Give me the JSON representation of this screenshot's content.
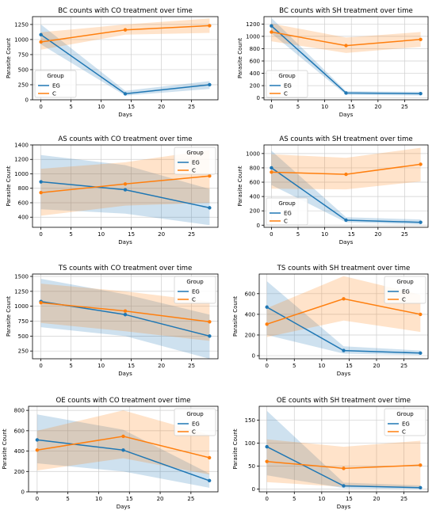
{
  "legend_title": "Group",
  "xlabel": "Days",
  "ylabel": "Parasite Count",
  "colors": {
    "EG": "#1f77b4",
    "C": "#ff7f0e"
  },
  "chart_data": [
    {
      "type": "line",
      "title": "BC counts with CO treatment over time",
      "xlabel": "Days",
      "ylabel": "Parasite Count",
      "xlim": [
        -1.4,
        29.4
      ],
      "ylim": [
        0,
        1380
      ],
      "xticks": [
        0,
        5,
        10,
        15,
        20,
        25
      ],
      "yticks": [
        0,
        250,
        500,
        750,
        1000,
        1250
      ],
      "legend": "bottom-left",
      "grid": true,
      "x": [
        0,
        14,
        28
      ],
      "series": [
        {
          "name": "EG",
          "values": [
            1080,
            100,
            250
          ],
          "lower": [
            920,
            70,
            180
          ],
          "upper": [
            1250,
            150,
            310
          ]
        },
        {
          "name": "C",
          "values": [
            960,
            1160,
            1230
          ],
          "lower": [
            830,
            1080,
            1110
          ],
          "upper": [
            1120,
            1250,
            1350
          ]
        }
      ]
    },
    {
      "type": "line",
      "title": "BC counts with SH treatment over time",
      "xlabel": "Days",
      "ylabel": "Parasite Count",
      "xlim": [
        -1.4,
        29.4
      ],
      "ylim": [
        -30,
        1320
      ],
      "xticks": [
        0,
        5,
        10,
        15,
        20,
        25
      ],
      "yticks": [
        0,
        200,
        400,
        600,
        800,
        1000,
        1200
      ],
      "legend": "bottom-left",
      "grid": true,
      "x": [
        0,
        14,
        28
      ],
      "series": [
        {
          "name": "EG",
          "values": [
            1170,
            80,
            70
          ],
          "lower": [
            1050,
            50,
            40
          ],
          "upper": [
            1300,
            110,
            100
          ]
        },
        {
          "name": "C",
          "values": [
            1070,
            850,
            950
          ],
          "lower": [
            920,
            730,
            830
          ],
          "upper": [
            1210,
            980,
            1070
          ]
        }
      ]
    },
    {
      "type": "line",
      "title": "AS counts with CO treatment over time",
      "xlabel": "Days",
      "ylabel": "Parasite Count",
      "xlim": [
        -1.4,
        29.4
      ],
      "ylim": [
        260,
        1400
      ],
      "xticks": [
        0,
        5,
        10,
        15,
        20,
        25
      ],
      "yticks": [
        400,
        600,
        800,
        1000,
        1200,
        1400
      ],
      "legend": "top-right",
      "grid": true,
      "x": [
        0,
        14,
        28
      ],
      "series": [
        {
          "name": "EG",
          "values": [
            890,
            780,
            530
          ],
          "lower": [
            510,
            450,
            290
          ],
          "upper": [
            1260,
            1120,
            790
          ]
        },
        {
          "name": "C",
          "values": [
            740,
            860,
            970
          ],
          "lower": [
            420,
            560,
            600
          ],
          "upper": [
            1070,
            1160,
            1330
          ]
        }
      ]
    },
    {
      "type": "line",
      "title": "AS counts with SH treatment over time",
      "xlabel": "Days",
      "ylabel": "Parasite Count",
      "xlim": [
        -1.4,
        29.4
      ],
      "ylim": [
        -30,
        1120
      ],
      "xticks": [
        0,
        5,
        10,
        15,
        20,
        25
      ],
      "yticks": [
        0,
        200,
        400,
        600,
        800,
        1000
      ],
      "legend": "bottom-left",
      "grid": true,
      "x": [
        0,
        14,
        28
      ],
      "series": [
        {
          "name": "EG",
          "values": [
            800,
            70,
            40
          ],
          "lower": [
            560,
            40,
            10
          ],
          "upper": [
            1040,
            110,
            80
          ]
        },
        {
          "name": "C",
          "values": [
            740,
            710,
            850
          ],
          "lower": [
            510,
            500,
            610
          ],
          "upper": [
            990,
            940,
            1080
          ]
        }
      ]
    },
    {
      "type": "line",
      "title": "TS counts with CO treatment over time",
      "xlabel": "Days",
      "ylabel": "Parasite Count",
      "xlim": [
        -1.4,
        29.4
      ],
      "ylim": [
        120,
        1540
      ],
      "xticks": [
        0,
        5,
        10,
        15,
        20,
        25
      ],
      "yticks": [
        250,
        500,
        750,
        1000,
        1250,
        1500
      ],
      "legend": "top-right",
      "grid": true,
      "x": [
        0,
        14,
        28
      ],
      "series": [
        {
          "name": "EG",
          "values": [
            1080,
            860,
            500
          ],
          "lower": [
            650,
            500,
            120
          ],
          "upper": [
            1460,
            1200,
            860
          ]
        },
        {
          "name": "C",
          "values": [
            1060,
            920,
            740
          ],
          "lower": [
            720,
            580,
            420
          ],
          "upper": [
            1380,
            1250,
            1080
          ]
        }
      ]
    },
    {
      "type": "line",
      "title": "TS counts with SH treatment over time",
      "xlabel": "Days",
      "ylabel": "Parasite Count",
      "xlim": [
        -1.4,
        29.4
      ],
      "ylim": [
        -30,
        790
      ],
      "xticks": [
        0,
        5,
        10,
        15,
        20,
        25
      ],
      "yticks": [
        0,
        200,
        400,
        600
      ],
      "legend": "top-right",
      "grid": true,
      "x": [
        0,
        14,
        28
      ],
      "series": [
        {
          "name": "EG",
          "values": [
            470,
            50,
            25
          ],
          "lower": [
            200,
            20,
            5
          ],
          "upper": [
            720,
            90,
            50
          ]
        },
        {
          "name": "C",
          "values": [
            305,
            550,
            400
          ],
          "lower": [
            180,
            340,
            230
          ],
          "upper": [
            460,
            770,
            590
          ]
        }
      ]
    },
    {
      "type": "line",
      "title": "OE counts with CO treatment over time",
      "xlabel": "Days",
      "ylabel": "Parasite Count",
      "xlim": [
        -1.4,
        29.4
      ],
      "ylim": [
        0,
        840
      ],
      "xticks": [
        0,
        5,
        10,
        15,
        20,
        25
      ],
      "yticks": [
        0,
        200,
        400,
        600,
        800
      ],
      "legend": "top-right",
      "grid": true,
      "x": [
        0,
        14,
        28
      ],
      "series": [
        {
          "name": "EG",
          "values": [
            510,
            410,
            110
          ],
          "lower": [
            280,
            200,
            40
          ],
          "upper": [
            760,
            610,
            180
          ]
        },
        {
          "name": "C",
          "values": [
            410,
            545,
            335
          ],
          "lower": [
            210,
            330,
            170
          ],
          "upper": [
            600,
            800,
            560
          ]
        }
      ]
    },
    {
      "type": "line",
      "title": "OE counts with SH treatment over time",
      "xlabel": "Days",
      "ylabel": "Parasite Count",
      "xlim": [
        -1.4,
        29.4
      ],
      "ylim": [
        -6,
        180
      ],
      "xticks": [
        0,
        5,
        10,
        15,
        20,
        25
      ],
      "yticks": [
        0,
        50,
        100,
        150
      ],
      "legend": "top-right",
      "grid": true,
      "x": [
        0,
        14,
        28
      ],
      "series": [
        {
          "name": "EG",
          "values": [
            92,
            7,
            3
          ],
          "lower": [
            30,
            2,
            0
          ],
          "upper": [
            170,
            14,
            8
          ]
        },
        {
          "name": "C",
          "values": [
            60,
            45,
            52
          ],
          "lower": [
            15,
            5,
            5
          ],
          "upper": [
            108,
            92,
            105
          ]
        }
      ]
    }
  ]
}
